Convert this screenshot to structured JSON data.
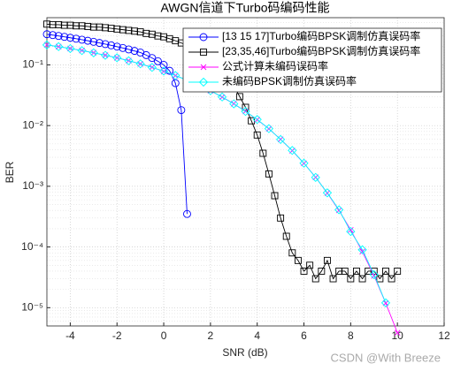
{
  "chart_data": {
    "type": "line",
    "title": "AWGN信道下Turbo码编码性能",
    "xlabel": "SNR (dB)",
    "ylabel": "BER",
    "watermark": "CSDN @With Breeze",
    "log_y": true,
    "grid": true,
    "legend": "upper right",
    "xlim": [
      -5,
      12
    ],
    "xticks": [
      -4,
      -2,
      0,
      2,
      4,
      6,
      8,
      10,
      12
    ],
    "ylim": [
      5e-06,
      0.6
    ],
    "yticks": [
      {
        "value": 1e-05,
        "label": "10⁻⁵"
      },
      {
        "value": 0.0001,
        "label": "10⁻⁴"
      },
      {
        "value": 0.001,
        "label": "10⁻³"
      },
      {
        "value": 0.01,
        "label": "10⁻²"
      },
      {
        "value": 0.1,
        "label": "10⁻¹"
      }
    ],
    "series": [
      {
        "name": "[13 15 17]Turbo编码BPSK调制仿真误码率",
        "color": "#0000ff",
        "marker": "circle",
        "x": [
          -5,
          -4.75,
          -4.5,
          -4.25,
          -4,
          -3.75,
          -3.5,
          -3.25,
          -3,
          -2.75,
          -2.5,
          -2.25,
          -2,
          -1.75,
          -1.5,
          -1.25,
          -1,
          -0.75,
          -0.5,
          -0.25,
          0,
          0.25,
          0.5,
          0.75,
          1
        ],
        "values": [
          0.32,
          0.31,
          0.3,
          0.29,
          0.28,
          0.27,
          0.26,
          0.25,
          0.24,
          0.23,
          0.22,
          0.21,
          0.2,
          0.19,
          0.18,
          0.17,
          0.16,
          0.145,
          0.13,
          0.115,
          0.1,
          0.08,
          0.05,
          0.018,
          0.00035
        ]
      },
      {
        "name": "[23,35,46]Turbo编码BPSK调制仿真误码率",
        "color": "#000000",
        "marker": "square",
        "x": [
          -5,
          -4.75,
          -4.5,
          -4.25,
          -4,
          -3.75,
          -3.5,
          -3.25,
          -3,
          -2.75,
          -2.5,
          -2.25,
          -2,
          -1.75,
          -1.5,
          -1.25,
          -1,
          -0.75,
          -0.5,
          -0.25,
          0,
          0.25,
          0.5,
          0.75,
          1,
          1.25,
          1.5,
          1.75,
          2,
          2.25,
          2.5,
          2.75,
          3,
          3.25,
          3.5,
          3.75,
          4,
          4.25,
          4.5,
          4.75,
          5,
          5.25,
          5.5,
          5.75,
          6,
          6.25,
          6.5,
          6.75,
          7,
          7.25,
          7.5,
          7.75,
          8,
          8.25,
          8.5,
          8.75,
          9,
          9.25,
          9.5,
          9.75,
          10
        ],
        "values": [
          0.47,
          0.46,
          0.46,
          0.45,
          0.45,
          0.44,
          0.44,
          0.43,
          0.42,
          0.42,
          0.41,
          0.4,
          0.39,
          0.38,
          0.37,
          0.36,
          0.35,
          0.33,
          0.32,
          0.3,
          0.29,
          0.27,
          0.25,
          0.23,
          0.21,
          0.19,
          0.16,
          0.14,
          0.12,
          0.1,
          0.08,
          0.06,
          0.045,
          0.03,
          0.02,
          0.012,
          0.007,
          0.0035,
          0.0016,
          0.0007,
          0.0003,
          0.00015,
          8e-05,
          6e-05,
          4e-05,
          5e-05,
          3e-05,
          4e-05,
          6e-05,
          3e-05,
          4e-05,
          4e-05,
          3e-05,
          4e-05,
          3e-05,
          4e-05,
          4e-05,
          3e-05,
          4e-05,
          3e-05,
          4e-05
        ]
      },
      {
        "name": "公式计算未编码误码率",
        "color": "#ff00ff",
        "marker": "x",
        "x": [
          -5,
          -4.5,
          -4,
          -3.5,
          -3,
          -2.5,
          -2,
          -1.5,
          -1,
          -0.5,
          0,
          0.5,
          1,
          1.5,
          2,
          2.5,
          3,
          3.5,
          4,
          4.5,
          5,
          5.5,
          6,
          6.5,
          7,
          7.5,
          8,
          8.5,
          9,
          9.5,
          10
        ],
        "values": [
          0.2134,
          0.1998,
          0.1862,
          0.1723,
          0.1584,
          0.1444,
          0.1308,
          0.1172,
          0.1041,
          0.0913,
          0.0786,
          0.0668,
          0.0563,
          0.0464,
          0.0375,
          0.0295,
          0.0229,
          0.0172,
          0.0125,
          0.00885,
          0.00595,
          0.00386,
          0.00239,
          0.00141,
          0.000773,
          0.000402,
          0.000191,
          8.4e-05,
          3.36e-05,
          1.19e-05,
          3.87e-06
        ]
      },
      {
        "name": "未编码BPSK调制仿真误码率",
        "color": "#00ffff",
        "marker": "diamond",
        "x": [
          -5,
          -4.5,
          -4,
          -3.5,
          -3,
          -2.5,
          -2,
          -1.5,
          -1,
          -0.5,
          0,
          0.5,
          1,
          1.5,
          2,
          2.5,
          3,
          3.5,
          4,
          4.5,
          5,
          5.5,
          6,
          6.5,
          7,
          7.5,
          8,
          8.5,
          9,
          9.5
        ],
        "values": [
          0.213,
          0.2,
          0.186,
          0.172,
          0.158,
          0.144,
          0.131,
          0.117,
          0.104,
          0.091,
          0.079,
          0.067,
          0.056,
          0.046,
          0.0376,
          0.0296,
          0.0228,
          0.0171,
          0.0126,
          0.0089,
          0.0059,
          0.0039,
          0.0024,
          0.0014,
          0.00078,
          0.00041,
          0.00018,
          9e-05,
          3.5e-05,
          1.2e-05
        ]
      }
    ]
  }
}
